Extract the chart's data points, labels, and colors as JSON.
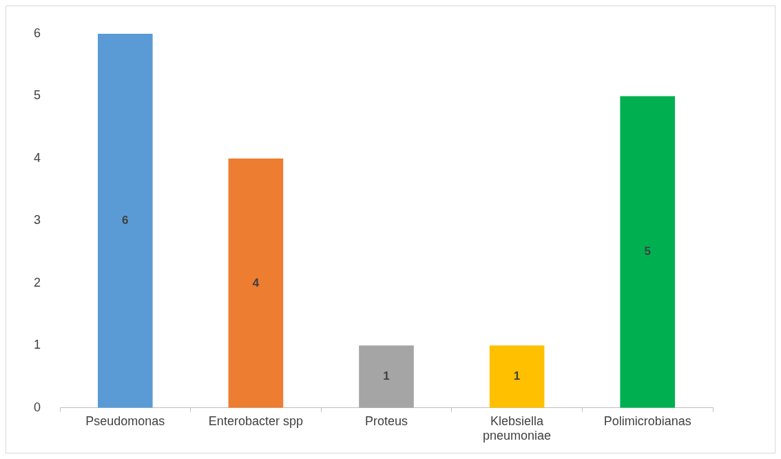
{
  "chart_data": {
    "type": "bar",
    "categories": [
      "Pseudomonas",
      "Enterobacter spp",
      "Proteus",
      "Klebsiella pneumoniae",
      "Polimicrobianas"
    ],
    "values": [
      6,
      4,
      1,
      1,
      5
    ],
    "colors": [
      "#5b9bd5",
      "#ed7d31",
      "#a5a5a5",
      "#ffc000",
      "#00b050"
    ],
    "ylim": [
      0,
      6
    ],
    "yticks": [
      0,
      1,
      2,
      3,
      4,
      5,
      6
    ],
    "grid": false,
    "legend": false,
    "data_labels": true
  }
}
